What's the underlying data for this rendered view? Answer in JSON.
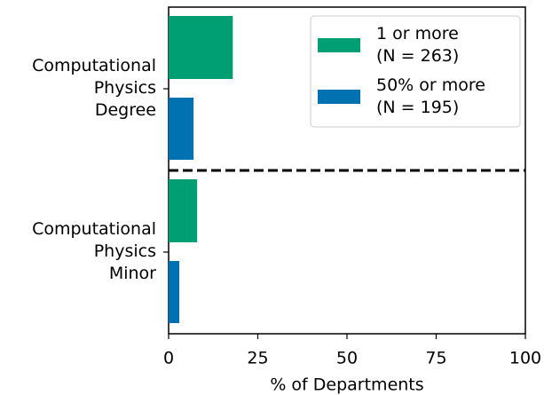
{
  "chart_data": {
    "type": "barh",
    "categories": [
      "Computational\nPhysics\nDegree",
      "Computational\nPhysics\nMinor"
    ],
    "series": [
      {
        "name": "1 or more\n(N = 263)",
        "color": "#009e73",
        "values": [
          18,
          8
        ]
      },
      {
        "name": "50% or more\n(N = 195)",
        "color": "#0072b2",
        "values": [
          7,
          3
        ]
      }
    ],
    "xlabel": "% of Departments",
    "xlim": [
      0,
      100
    ],
    "xticks": [
      0,
      25,
      50,
      75,
      100
    ],
    "legend": "upper right",
    "grid": false
  }
}
